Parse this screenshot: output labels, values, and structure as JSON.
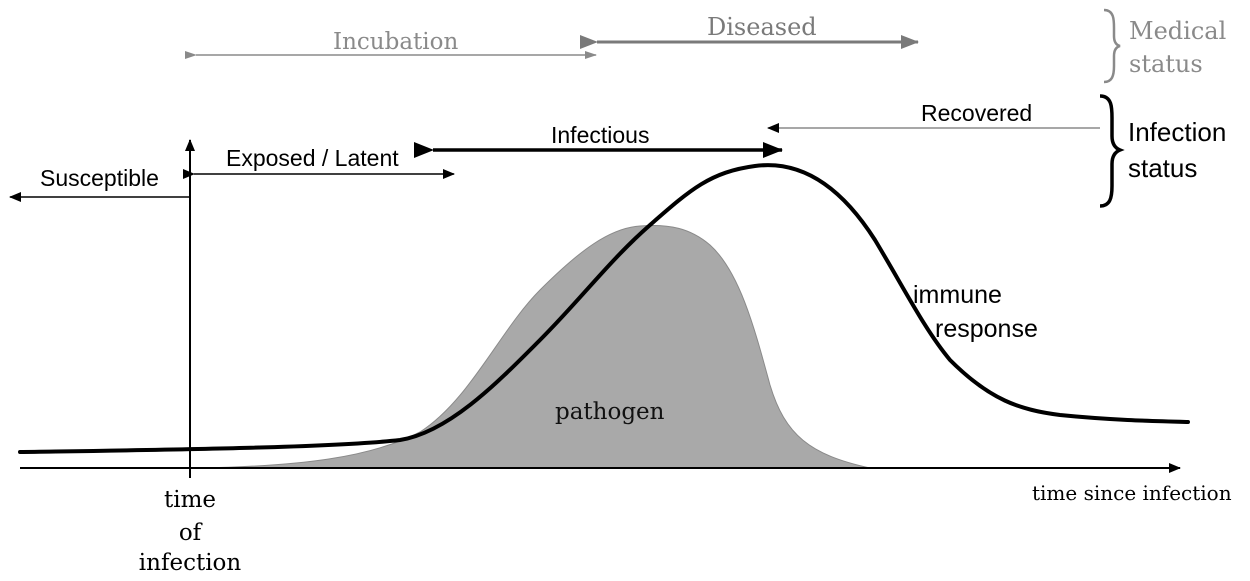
{
  "medical_status": {
    "incubation": "Incubation",
    "diseased": "Diseased",
    "group_label_line1": "Medical",
    "group_label_line2": "status"
  },
  "infection_status": {
    "susceptible": "Susceptible",
    "exposed_latent": "Exposed / Latent",
    "infectious": "Infectious",
    "recovered": "Recovered",
    "group_label_line1": "Infection",
    "group_label_line2": "status"
  },
  "axes": {
    "x_label": "time since infection",
    "origin_label_line1": "time",
    "origin_label_line2": "of",
    "origin_label_line3": "infection"
  },
  "curves": {
    "immune_label_line1": "immune",
    "immune_label_line2": "response",
    "pathogen_label": "pathogen"
  },
  "colors": {
    "pathogen_fill": "#a9a9a9",
    "line": "#000000",
    "medical_gray": "#8a8a8a"
  }
}
